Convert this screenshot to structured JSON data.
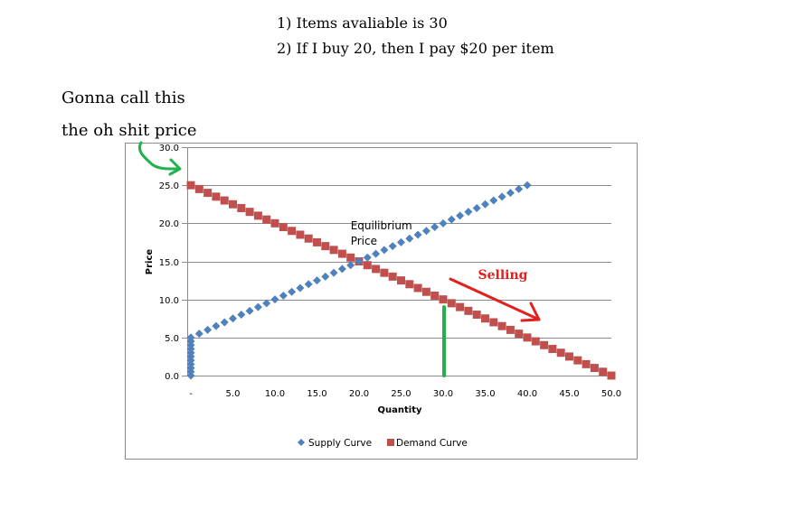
{
  "notes": {
    "line1": "1) Items avaliable is 30",
    "line2": "2) If I buy 20, then I pay $20 per item"
  },
  "handwritten": {
    "line1": "Gonna call this",
    "line2": "the oh shit price"
  },
  "colors": {
    "supply": "#4f81bd",
    "demand": "#c0504d",
    "green_marker": "#22b14c",
    "red_arrow": "#e0211d",
    "gridline": "#8c8c8c"
  },
  "chart_data": {
    "type": "scatter",
    "xlabel": "Quantity",
    "ylabel": "Price",
    "xlim": [
      0,
      50
    ],
    "ylim": [
      0,
      30
    ],
    "x_tick_labels": [
      "-",
      "5.0",
      "10.0",
      "15.0",
      "20.0",
      "25.0",
      "30.0",
      "35.0",
      "40.0",
      "45.0",
      "50.0"
    ],
    "y_tick_labels": [
      "0.0",
      "5.0",
      "10.0",
      "15.0",
      "20.0",
      "25.0",
      "30.0"
    ],
    "grid": "horizontal",
    "legend_position": "bottom",
    "series": [
      {
        "name": "Supply Curve",
        "marker": "diamond",
        "color": "#4f81bd",
        "points": [
          [
            0,
            0
          ],
          [
            0,
            0.5
          ],
          [
            0,
            1
          ],
          [
            0,
            1.5
          ],
          [
            0,
            2
          ],
          [
            0,
            2.5
          ],
          [
            0,
            3
          ],
          [
            0,
            3.5
          ],
          [
            0,
            4
          ],
          [
            0,
            4.5
          ],
          [
            0,
            5
          ],
          [
            1,
            5.5
          ],
          [
            2,
            6
          ],
          [
            3,
            6.5
          ],
          [
            4,
            7
          ],
          [
            5,
            7.5
          ],
          [
            6,
            8
          ],
          [
            7,
            8.5
          ],
          [
            8,
            9
          ],
          [
            9,
            9.5
          ],
          [
            10,
            10
          ],
          [
            11,
            10.5
          ],
          [
            12,
            11
          ],
          [
            13,
            11.5
          ],
          [
            14,
            12
          ],
          [
            15,
            12.5
          ],
          [
            16,
            13
          ],
          [
            17,
            13.5
          ],
          [
            18,
            14
          ],
          [
            19,
            14.5
          ],
          [
            20,
            15
          ],
          [
            21,
            15.5
          ],
          [
            22,
            16
          ],
          [
            23,
            16.5
          ],
          [
            24,
            17
          ],
          [
            25,
            17.5
          ],
          [
            26,
            18
          ],
          [
            27,
            18.5
          ],
          [
            28,
            19
          ],
          [
            29,
            19.5
          ],
          [
            30,
            20
          ],
          [
            31,
            20.5
          ],
          [
            32,
            21
          ],
          [
            33,
            21.5
          ],
          [
            34,
            22
          ],
          [
            35,
            22.5
          ],
          [
            36,
            23
          ],
          [
            37,
            23.5
          ],
          [
            38,
            24
          ],
          [
            39,
            24.5
          ],
          [
            40,
            25
          ]
        ]
      },
      {
        "name": "Demand Curve",
        "marker": "square",
        "color": "#c0504d",
        "points": [
          [
            0,
            25
          ],
          [
            1,
            24.5
          ],
          [
            2,
            24
          ],
          [
            3,
            23.5
          ],
          [
            4,
            23
          ],
          [
            5,
            22.5
          ],
          [
            6,
            22
          ],
          [
            7,
            21.5
          ],
          [
            8,
            21
          ],
          [
            9,
            20.5
          ],
          [
            10,
            20
          ],
          [
            11,
            19.5
          ],
          [
            12,
            19
          ],
          [
            13,
            18.5
          ],
          [
            14,
            18
          ],
          [
            15,
            17.5
          ],
          [
            16,
            17
          ],
          [
            17,
            16.5
          ],
          [
            18,
            16
          ],
          [
            19,
            15.5
          ],
          [
            20,
            15
          ],
          [
            21,
            14.5
          ],
          [
            22,
            14
          ],
          [
            23,
            13.5
          ],
          [
            24,
            13
          ],
          [
            25,
            12.5
          ],
          [
            26,
            12
          ],
          [
            27,
            11.5
          ],
          [
            28,
            11
          ],
          [
            29,
            10.5
          ],
          [
            30,
            10
          ],
          [
            31,
            9.5
          ],
          [
            32,
            9
          ],
          [
            33,
            8.5
          ],
          [
            34,
            8
          ],
          [
            35,
            7.5
          ],
          [
            36,
            7
          ],
          [
            37,
            6.5
          ],
          [
            38,
            6
          ],
          [
            39,
            5.5
          ],
          [
            40,
            5
          ],
          [
            41,
            4.5
          ],
          [
            42,
            4
          ],
          [
            43,
            3.5
          ],
          [
            44,
            3
          ],
          [
            45,
            2.5
          ],
          [
            46,
            2
          ],
          [
            47,
            1.5
          ],
          [
            48,
            1
          ],
          [
            49,
            0.5
          ],
          [
            50,
            0
          ]
        ]
      }
    ],
    "annotations": [
      {
        "text": "Equilibrium",
        "x": 19,
        "y": 19.2
      },
      {
        "text": "Price",
        "x": 19,
        "y": 17.2
      },
      {
        "text": "Selling",
        "x": 35,
        "y": 12.7
      }
    ],
    "markers": {
      "green_vertical_line": {
        "x": 30,
        "y_from": 0,
        "y_to": 9
      }
    }
  }
}
